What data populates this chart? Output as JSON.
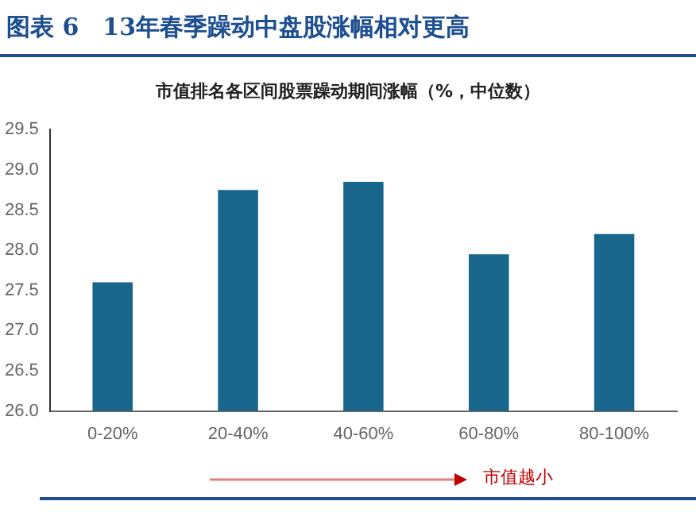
{
  "chart_data": {
    "type": "bar",
    "title": "图表 6　13年春季躁动中盘股涨幅相对更高",
    "subtitle": "市值排名各区间股票躁动期间涨幅（%，中位数）",
    "categories": [
      "0-20%",
      "20-40%",
      "40-60%",
      "60-80%",
      "80-100%"
    ],
    "values": [
      27.6,
      28.75,
      28.85,
      27.95,
      28.2
    ],
    "color": "#18668c",
    "ylim": [
      26,
      29.5
    ],
    "yticks": [
      {
        "value": 26,
        "label": "26.0"
      },
      {
        "value": 26.5,
        "label": "26.5"
      },
      {
        "value": 27,
        "label": "27.0"
      },
      {
        "value": 27.5,
        "label": "27.5"
      },
      {
        "value": 28,
        "label": "28.0"
      },
      {
        "value": 28.5,
        "label": "28.5"
      },
      {
        "value": 29,
        "label": "29.0"
      },
      {
        "value": 29.5,
        "label": "29.5"
      }
    ],
    "grid": false,
    "legend": false,
    "annotations": [
      "市值越小"
    ]
  }
}
